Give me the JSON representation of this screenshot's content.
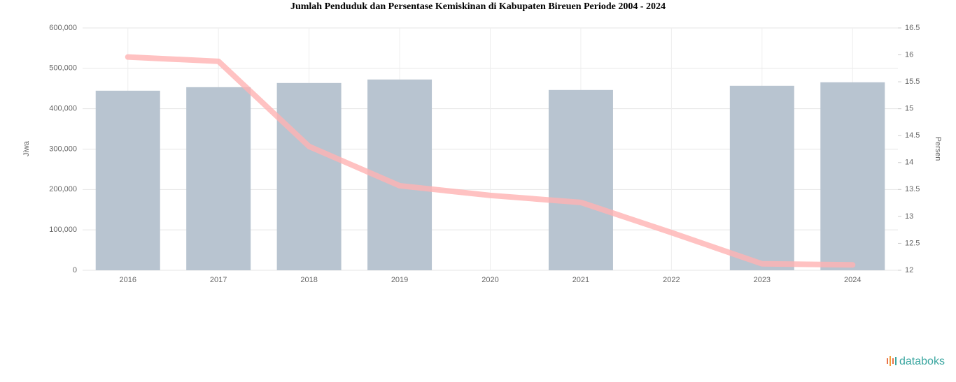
{
  "chart_data": {
    "type": "bar-line",
    "title": "Jumlah Penduduk dan Persentase Kemiskinan di Kabupaten Bireuen Periode 2004 - 2024",
    "y_label": "Jiwa",
    "y2_label": "Persen",
    "categories": [
      "2016",
      "2017",
      "2018",
      "2019",
      "2020",
      "2021",
      "2022",
      "2023",
      "2024"
    ],
    "series": [
      {
        "name": "Jumlah Penduduk",
        "type": "bar",
        "color": "#b8c4d0",
        "values": [
          444600,
          453300,
          463700,
          472300,
          null,
          446400,
          null,
          456800,
          465400
        ]
      },
      {
        "name": "Persentase Kemiskinan",
        "type": "line",
        "axis": "y2",
        "color": "#ffb3b3",
        "values": [
          15.96,
          15.88,
          14.3,
          13.57,
          13.39,
          13.26,
          12.7,
          12.12,
          12.1
        ]
      }
    ],
    "ylim": [
      0,
      600000
    ],
    "yticks": [
      0,
      {
        "value": 100000,
        "label": "100,000"
      },
      {
        "value": 200000,
        "label": "200,000"
      },
      {
        "value": 300000,
        "label": "300,000"
      },
      {
        "value": 400000,
        "label": "400,000"
      },
      {
        "value": 500000,
        "label": "500,000"
      },
      {
        "value": 600000,
        "label": "600,000"
      }
    ],
    "y2lim": [
      12,
      16.5
    ],
    "y2ticks": [
      12,
      12.5,
      13,
      13.5,
      14,
      14.5,
      15,
      15.5,
      16,
      16.5
    ],
    "grid": true,
    "brand": "databoks"
  }
}
